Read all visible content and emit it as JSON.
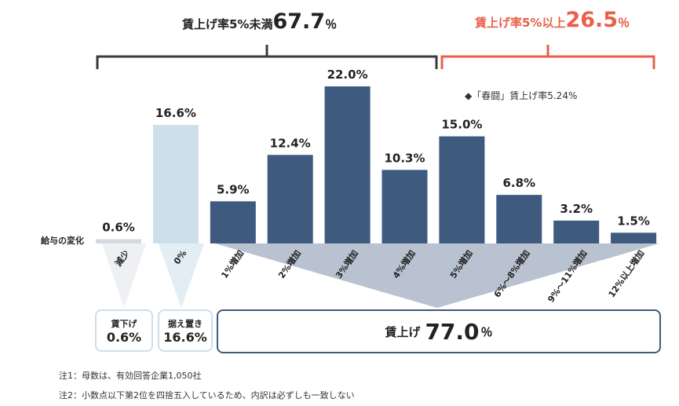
{
  "chart_data": {
    "type": "bar",
    "ylabel": "給与の変化",
    "categories": [
      "減少",
      "0%",
      "1%増加",
      "2%増加",
      "3%増加",
      "4%増加",
      "5%増加",
      "6%～8%増加",
      "9%～11%増加",
      "12%以上増加"
    ],
    "values": [
      0.6,
      16.6,
      5.9,
      12.4,
      22.0,
      10.3,
      15.0,
      6.8,
      3.2,
      1.5
    ],
    "value_labels": [
      "0.6%",
      "16.6%",
      "5.9%",
      "12.4%",
      "22.0%",
      "10.3%",
      "15.0%",
      "6.8%",
      "3.2%",
      "1.5%"
    ],
    "ylim": [
      0,
      22
    ],
    "grid": false,
    "colors": [
      "#d3d9df",
      "#cddfeb",
      "#3e5a7f",
      "#3e5a7f",
      "#3e5a7f",
      "#3e5a7f",
      "#3e5a7f",
      "#3e5a7f",
      "#3e5a7f",
      "#3e5a7f"
    ],
    "annotation": "◆「春闘」賃上げ率5.24%"
  },
  "groups": {
    "under5": {
      "label": "賃上げ率5%未満",
      "value": "67.7",
      "unit": "％"
    },
    "over5": {
      "label": "賃上げ率5%以上",
      "value": "26.5",
      "unit": "％"
    }
  },
  "summary": {
    "decrease": {
      "label": "賃下げ",
      "value": "0.6%"
    },
    "flat": {
      "label": "据え置き",
      "value": "16.6%"
    },
    "raise": {
      "label": "賃上げ",
      "value": "77.0",
      "unit": "％"
    }
  },
  "notes": [
    "注1：母数は、有効回答企業1,050社",
    "注2：小数点以下第2位を四捨五入しているため、内訳は必ずしも一致しない"
  ],
  "colors": {
    "dark": "#3e5a7f",
    "light": "#cddfeb",
    "gray": "#d3d9df",
    "red": "#e8604a",
    "bracket": "#3a3a3a",
    "funnel": "#b9c2d0"
  }
}
